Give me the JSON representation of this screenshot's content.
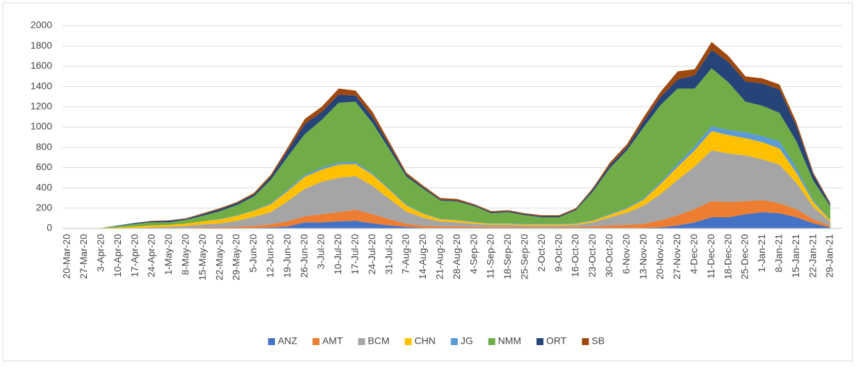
{
  "chart_data": {
    "type": "stacked-area",
    "categories": [
      "20-Mar-20",
      "27-Mar-20",
      "3-Apr-20",
      "10-Apr-20",
      "17-Apr-20",
      "24-Apr-20",
      "1-May-20",
      "8-May-20",
      "15-May-20",
      "22-May-20",
      "29-May-20",
      "5-Jun-20",
      "12-Jun-20",
      "19-Jun-20",
      "26-Jun-20",
      "3-Jul-20",
      "10-Jul-20",
      "17-Jul-20",
      "24-Jul-20",
      "31-Jul-20",
      "7-Aug-20",
      "14-Aug-20",
      "21-Aug-20",
      "28-Aug-20",
      "4-Sep-20",
      "11-Sep-20",
      "18-Sep-20",
      "25-Sep-20",
      "2-Oct-20",
      "9-Oct-20",
      "16-Oct-20",
      "23-Oct-20",
      "30-Oct-20",
      "6-Nov-20",
      "13-Nov-20",
      "20-Nov-20",
      "27-Nov-20",
      "4-Dec-20",
      "11-Dec-20",
      "18-Dec-20",
      "25-Dec-20",
      "1-Jan-21",
      "8-Jan-21",
      "15-Jan-21",
      "22-Jan-21",
      "29-Jan-21"
    ],
    "series": [
      {
        "name": "ANZ",
        "color": "#4472c4",
        "values": [
          0,
          0,
          0,
          0,
          0,
          0,
          0,
          0,
          0,
          0,
          0,
          5,
          10,
          20,
          60,
          60,
          70,
          75,
          50,
          30,
          15,
          5,
          5,
          5,
          5,
          5,
          5,
          5,
          5,
          5,
          5,
          5,
          5,
          5,
          5,
          10,
          30,
          60,
          110,
          110,
          140,
          160,
          150,
          110,
          50,
          10
        ]
      },
      {
        "name": "AMT",
        "color": "#ed7d31",
        "values": [
          0,
          0,
          0,
          0,
          0,
          0,
          0,
          5,
          10,
          10,
          15,
          20,
          30,
          50,
          60,
          80,
          90,
          110,
          90,
          60,
          30,
          20,
          15,
          15,
          10,
          10,
          10,
          10,
          10,
          10,
          10,
          15,
          25,
          30,
          40,
          70,
          100,
          130,
          160,
          150,
          130,
          120,
          100,
          80,
          40,
          15
        ]
      },
      {
        "name": "BCM",
        "color": "#a5a5a5",
        "values": [
          0,
          0,
          0,
          0,
          5,
          10,
          15,
          20,
          30,
          40,
          60,
          90,
          120,
          200,
          270,
          320,
          340,
          330,
          280,
          200,
          120,
          80,
          50,
          40,
          30,
          20,
          20,
          15,
          15,
          15,
          20,
          40,
          80,
          120,
          180,
          260,
          350,
          420,
          500,
          480,
          450,
          400,
          380,
          260,
          120,
          40
        ]
      },
      {
        "name": "CHN",
        "color": "#ffc000",
        "values": [
          0,
          0,
          5,
          10,
          15,
          20,
          20,
          25,
          30,
          40,
          50,
          60,
          80,
          100,
          120,
          120,
          130,
          120,
          110,
          90,
          60,
          40,
          20,
          20,
          15,
          10,
          10,
          10,
          10,
          10,
          10,
          15,
          25,
          40,
          60,
          100,
          130,
          160,
          190,
          180,
          170,
          170,
          160,
          100,
          50,
          15
        ]
      },
      {
        "name": "JG",
        "color": "#5b9bd5",
        "values": [
          0,
          0,
          0,
          0,
          0,
          0,
          0,
          0,
          0,
          5,
          5,
          5,
          10,
          15,
          20,
          20,
          20,
          20,
          15,
          10,
          10,
          5,
          5,
          5,
          5,
          5,
          5,
          5,
          5,
          5,
          5,
          5,
          10,
          10,
          15,
          20,
          30,
          40,
          50,
          50,
          60,
          60,
          70,
          50,
          20,
          5
        ]
      },
      {
        "name": "NMM",
        "color": "#70ad47",
        "values": [
          0,
          0,
          0,
          15,
          25,
          30,
          25,
          35,
          55,
          75,
          100,
          135,
          230,
          325,
          400,
          470,
          590,
          595,
          495,
          390,
          275,
          240,
          180,
          180,
          155,
          100,
          110,
          85,
          65,
          65,
          130,
          285,
          450,
          565,
          700,
          760,
          740,
          570,
          570,
          470,
          300,
          300,
          280,
          260,
          190,
          135
        ]
      },
      {
        "name": "ORT",
        "color": "#264478",
        "values": [
          0,
          0,
          0,
          5,
          10,
          10,
          15,
          10,
          15,
          20,
          20,
          20,
          30,
          60,
          100,
          80,
          80,
          60,
          60,
          40,
          20,
          15,
          10,
          10,
          10,
          10,
          10,
          10,
          10,
          10,
          10,
          20,
          30,
          30,
          60,
          80,
          90,
          130,
          180,
          200,
          200,
          220,
          230,
          150,
          60,
          20
        ]
      },
      {
        "name": "SB",
        "color": "#9e480e",
        "values": [
          0,
          0,
          0,
          0,
          0,
          5,
          5,
          5,
          10,
          10,
          10,
          15,
          20,
          30,
          50,
          50,
          60,
          50,
          50,
          30,
          20,
          15,
          15,
          15,
          10,
          10,
          10,
          10,
          10,
          10,
          10,
          15,
          25,
          30,
          40,
          50,
          80,
          60,
          80,
          60,
          50,
          50,
          50,
          40,
          20,
          10
        ]
      }
    ],
    "ylim": [
      0,
      2000
    ],
    "yticks": [
      0,
      200,
      400,
      600,
      800,
      1000,
      1200,
      1400,
      1600,
      1800,
      2000
    ],
    "grid": true,
    "legend": "bottom"
  }
}
